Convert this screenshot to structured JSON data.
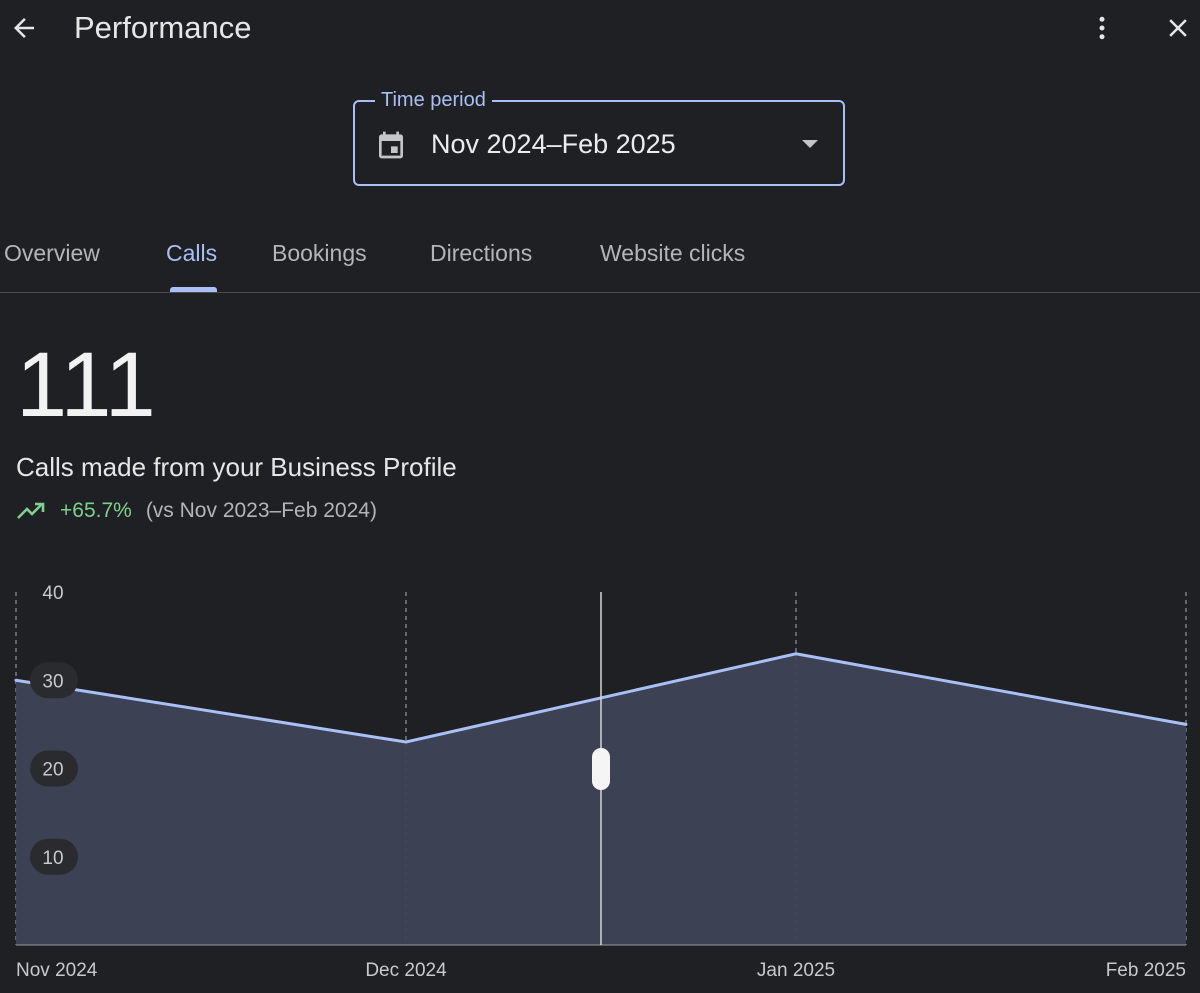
{
  "header": {
    "title": "Performance",
    "back_icon": "arrow-back-icon",
    "more_icon": "more-vert-icon",
    "close_icon": "close-icon"
  },
  "period": {
    "label": "Time period",
    "value": "Nov 2024–Feb 2025",
    "icon": "calendar-icon"
  },
  "tabs": [
    {
      "label": "Overview",
      "active": false
    },
    {
      "label": "Calls",
      "active": true
    },
    {
      "label": "Bookings",
      "active": false
    },
    {
      "label": "Directions",
      "active": false
    },
    {
      "label": "Website clicks",
      "active": false
    }
  ],
  "summary": {
    "total": "111",
    "caption": "Calls made from your Business Profile",
    "trend_pct": "+65.7%",
    "trend_compare": "(vs Nov 2023–Feb 2024)",
    "trend_icon": "trending-up-icon"
  },
  "colors": {
    "accent": "#a8c0f4",
    "positive": "#7fcf8e",
    "background": "#1f2023",
    "area_fill": "#3e4456"
  },
  "chart_data": {
    "type": "area",
    "categories": [
      "Nov 2024",
      "Dec 2024",
      "Jan 2025",
      "Feb 2025"
    ],
    "series": [
      {
        "values": [
          30,
          23,
          33,
          25
        ]
      }
    ],
    "yticks": [
      10,
      20,
      30,
      40
    ],
    "ylim": [
      0,
      40
    ],
    "grid": "vertical dashed",
    "cursor_value": 28
  }
}
